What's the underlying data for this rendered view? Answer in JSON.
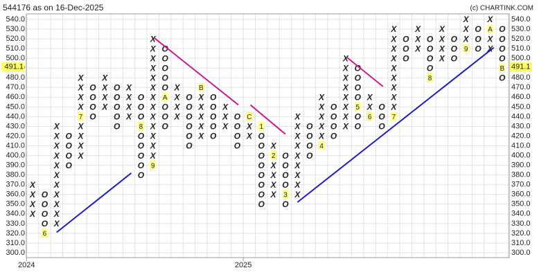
{
  "chart_data": {
    "type": "point-and-figure",
    "title": "544176 as on 16-Dec-2025",
    "credit": "(c) CHARTINK.COM",
    "box_size": 10,
    "ylim": [
      300,
      540
    ],
    "yticks": [
      {
        "value": 300,
        "label": "300.0"
      },
      {
        "value": 310,
        "label": "310.0"
      },
      {
        "value": 320,
        "label": "320.0"
      },
      {
        "value": 330,
        "label": "330.0"
      },
      {
        "value": 340,
        "label": "340.0"
      },
      {
        "value": 350,
        "label": "350.0"
      },
      {
        "value": 360,
        "label": "360.0"
      },
      {
        "value": 370,
        "label": "370.0"
      },
      {
        "value": 380,
        "label": "380.0"
      },
      {
        "value": 390,
        "label": "390.0"
      },
      {
        "value": 400,
        "label": "400.0"
      },
      {
        "value": 410,
        "label": "410.0"
      },
      {
        "value": 420,
        "label": "420.0"
      },
      {
        "value": 430,
        "label": "430.0"
      },
      {
        "value": 440,
        "label": "440.0"
      },
      {
        "value": 450,
        "label": "450.0"
      },
      {
        "value": 460,
        "label": "460.0"
      },
      {
        "value": 470,
        "label": "470.0"
      },
      {
        "value": 480,
        "label": "480.0"
      },
      {
        "value": 490,
        "label": "490.0"
      },
      {
        "value": 500,
        "label": "500.0"
      },
      {
        "value": 510,
        "label": "510.0"
      },
      {
        "value": 520,
        "label": "520.0"
      },
      {
        "value": 530,
        "label": "530.0"
      },
      {
        "value": 540,
        "label": "540.0"
      }
    ],
    "last_price": 491.1,
    "x_labels": [
      {
        "column": 0,
        "label": "2024"
      },
      {
        "column": 18,
        "label": "2025"
      }
    ],
    "colors": {
      "X": "#2f8f2f",
      "O": "#e02828",
      "marker_bg": "#ffff99",
      "last_bg": "#ffff66",
      "support": "#1a1acc",
      "resistance": "#cc1a8c"
    },
    "columns": [
      {
        "type": "X",
        "high": 370,
        "low": 340
      },
      {
        "type": "O",
        "high": 360,
        "low": 320,
        "markers": [
          {
            "value": 320,
            "label": "6"
          }
        ]
      },
      {
        "type": "X",
        "high": 430,
        "low": 330
      },
      {
        "type": "O",
        "high": 420,
        "low": 390
      },
      {
        "type": "X",
        "high": 480,
        "low": 400,
        "markers": [
          {
            "value": 440,
            "label": "7"
          }
        ]
      },
      {
        "type": "O",
        "high": 470,
        "low": 440
      },
      {
        "type": "X",
        "high": 480,
        "low": 450
      },
      {
        "type": "O",
        "high": 470,
        "low": 430
      },
      {
        "type": "X",
        "high": 470,
        "low": 440
      },
      {
        "type": "O",
        "high": 460,
        "low": 380,
        "markers": [
          {
            "value": 430,
            "label": "8"
          }
        ]
      },
      {
        "type": "X",
        "high": 520,
        "low": 390,
        "markers": [
          {
            "value": 390,
            "label": "9"
          }
        ]
      },
      {
        "type": "O",
        "high": 510,
        "low": 430,
        "markers": [
          {
            "value": 460,
            "label": "A"
          }
        ]
      },
      {
        "type": "X",
        "high": 470,
        "low": 440
      },
      {
        "type": "O",
        "high": 460,
        "low": 410
      },
      {
        "type": "X",
        "high": 470,
        "low": 420,
        "markers": [
          {
            "value": 470,
            "label": "B"
          }
        ]
      },
      {
        "type": "O",
        "high": 460,
        "low": 420
      },
      {
        "type": "X",
        "high": 450,
        "low": 430
      },
      {
        "type": "O",
        "high": 440,
        "low": 410
      },
      {
        "type": "X",
        "high": 440,
        "low": 420,
        "markers": [
          {
            "value": 440,
            "label": "C"
          }
        ]
      },
      {
        "type": "O",
        "high": 430,
        "low": 350,
        "markers": [
          {
            "value": 430,
            "label": "1"
          }
        ]
      },
      {
        "type": "X",
        "high": 410,
        "low": 360,
        "markers": [
          {
            "value": 400,
            "label": "2"
          }
        ]
      },
      {
        "type": "O",
        "high": 400,
        "low": 350,
        "markers": [
          {
            "value": 360,
            "label": "3"
          }
        ]
      },
      {
        "type": "X",
        "high": 440,
        "low": 360
      },
      {
        "type": "O",
        "high": 430,
        "low": 400
      },
      {
        "type": "X",
        "high": 460,
        "low": 410,
        "markers": [
          {
            "value": 410,
            "label": "4"
          }
        ]
      },
      {
        "type": "O",
        "high": 450,
        "low": 420
      },
      {
        "type": "X",
        "high": 500,
        "low": 430
      },
      {
        "type": "O",
        "high": 490,
        "low": 430,
        "markers": [
          {
            "value": 450,
            "label": "5"
          }
        ]
      },
      {
        "type": "X",
        "high": 460,
        "low": 440,
        "markers": [
          {
            "value": 440,
            "label": "6"
          }
        ]
      },
      {
        "type": "O",
        "high": 450,
        "low": 430
      },
      {
        "type": "X",
        "high": 530,
        "low": 440,
        "markers": [
          {
            "value": 440,
            "label": "7"
          }
        ]
      },
      {
        "type": "O",
        "high": 520,
        "low": 500
      },
      {
        "type": "X",
        "high": 530,
        "low": 510
      },
      {
        "type": "O",
        "high": 520,
        "low": 480,
        "markers": [
          {
            "value": 480,
            "label": "8"
          }
        ]
      },
      {
        "type": "X",
        "high": 530,
        "low": 500
      },
      {
        "type": "O",
        "high": 520,
        "low": 500
      },
      {
        "type": "X",
        "high": 540,
        "low": 510,
        "markers": [
          {
            "value": 510,
            "label": "9"
          }
        ]
      },
      {
        "type": "O",
        "high": 530,
        "low": 510
      },
      {
        "type": "X",
        "high": 540,
        "low": 510,
        "markers": [
          {
            "value": 530,
            "label": "A"
          }
        ]
      },
      {
        "type": "O",
        "high": 530,
        "low": 480,
        "markers": [
          {
            "value": 490,
            "label": "B"
          }
        ]
      }
    ],
    "trendlines": [
      {
        "kind": "support",
        "from": [
          2,
          321
        ],
        "to": [
          8.2,
          382
        ]
      },
      {
        "kind": "resistance",
        "from": [
          10.1,
          521
        ],
        "to": [
          17.1,
          452
        ]
      },
      {
        "kind": "resistance",
        "from": [
          18.1,
          452
        ],
        "to": [
          21,
          422
        ]
      },
      {
        "kind": "resistance",
        "from": [
          26.1,
          501
        ],
        "to": [
          29.1,
          471
        ]
      },
      {
        "kind": "support",
        "from": [
          22,
          352
        ],
        "to": [
          38.3,
          511
        ]
      }
    ]
  }
}
